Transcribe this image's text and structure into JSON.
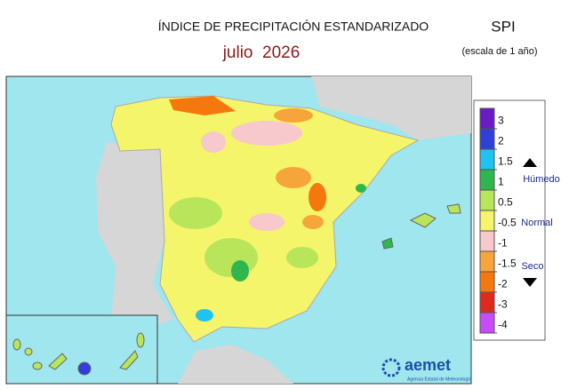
{
  "header": {
    "title": "ÍNDICE DE PRECIPITACIÓN ESTANDARIZADO",
    "date": "julio  2026",
    "index": "SPI",
    "scale": "(escala de 1 año)"
  },
  "legend": {
    "colors": [
      "#6a1bc4",
      "#2f3fd8",
      "#1ec4ef",
      "#2fb64f",
      "#b8e55a",
      "#f4f56a",
      "#f7c8cc",
      "#f6a53a",
      "#f5780f",
      "#e02a1e",
      "#c74cf5"
    ],
    "ticks": [
      3,
      2,
      1.5,
      1,
      0.5,
      -0.5,
      -1,
      -1.5,
      -2,
      -3,
      -4
    ],
    "wet": "Húmedo",
    "normal": "Normal",
    "dry": "Seco"
  },
  "logo": {
    "name": "aemet",
    "agency": "Agencia Estatal de Meteorología"
  }
}
